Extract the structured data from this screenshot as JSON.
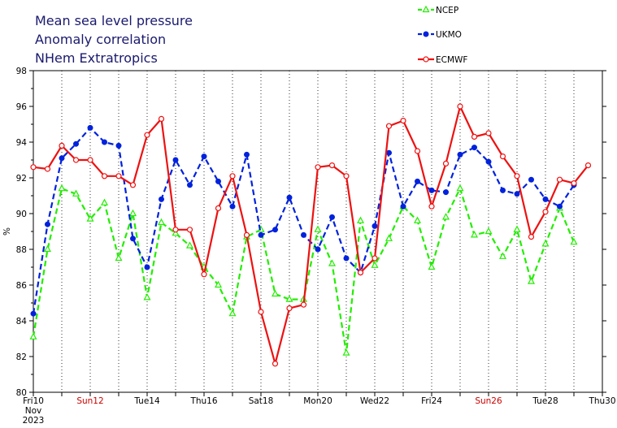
{
  "chart_data": {
    "type": "line",
    "title": [
      "Mean sea level pressure",
      "Anomaly correlation",
      "NHem Extratropics"
    ],
    "ylabel": "%",
    "ylim": [
      80,
      98
    ],
    "yticks": [
      80,
      82,
      84,
      86,
      88,
      90,
      92,
      94,
      96,
      98
    ],
    "xlim": [
      0,
      40
    ],
    "xticks": [
      {
        "x": 0,
        "label": "Fri10",
        "color": "#000000"
      },
      {
        "x": 4,
        "label": "Sun12",
        "color": "#cc0000"
      },
      {
        "x": 8,
        "label": "Tue14",
        "color": "#000000"
      },
      {
        "x": 12,
        "label": "Thu16",
        "color": "#000000"
      },
      {
        "x": 16,
        "label": "Sat18",
        "color": "#000000"
      },
      {
        "x": 20,
        "label": "Mon20",
        "color": "#000000"
      },
      {
        "x": 24,
        "label": "Wed22",
        "color": "#000000"
      },
      {
        "x": 28,
        "label": "Fri24",
        "color": "#000000"
      },
      {
        "x": 32,
        "label": "Sun26",
        "color": "#cc0000"
      },
      {
        "x": 36,
        "label": "Tue28",
        "color": "#000000"
      },
      {
        "x": 40,
        "label": "Thu30",
        "color": "#000000"
      }
    ],
    "x_sublabels": [
      "Nov",
      "2023"
    ],
    "grid": "dotted vertical at day ticks",
    "legend_position": "top-right",
    "series": [
      {
        "name": "NCEP",
        "color": "#22ee00",
        "dash": "dashed",
        "marker": "triangle",
        "x": [
          0,
          1,
          2,
          3,
          4,
          5,
          6,
          7,
          8,
          9,
          10,
          11,
          12,
          13,
          14,
          15,
          16,
          17,
          18,
          19,
          20,
          21,
          22,
          23,
          24,
          25,
          26,
          27,
          28,
          29,
          30,
          31,
          32,
          33,
          34,
          35,
          36,
          37,
          38
        ],
        "values": [
          83.1,
          88.0,
          91.4,
          91.1,
          89.7,
          90.6,
          87.5,
          90.0,
          85.3,
          89.5,
          88.9,
          88.2,
          87.0,
          86.0,
          84.4,
          88.7,
          89.1,
          85.5,
          85.2,
          85.2,
          89.1,
          87.2,
          82.2,
          89.6,
          87.1,
          88.6,
          90.4,
          89.6,
          87.0,
          89.8,
          91.4,
          88.8,
          89.0,
          87.6,
          89.1,
          86.2,
          88.3,
          90.3,
          88.4
        ]
      },
      {
        "name": "UKMO",
        "color": "#0022dd",
        "dash": "dashed",
        "marker": "dot",
        "x": [
          0,
          1,
          2,
          3,
          4,
          5,
          6,
          7,
          8,
          9,
          10,
          11,
          12,
          13,
          14,
          15,
          16,
          17,
          18,
          19,
          20,
          21,
          22,
          23,
          24,
          25,
          26,
          27,
          28,
          29,
          30,
          31,
          32,
          33,
          34,
          35,
          36,
          37,
          38
        ],
        "values": [
          84.4,
          89.4,
          93.1,
          93.9,
          94.8,
          94.0,
          93.8,
          88.6,
          87.0,
          90.8,
          93.0,
          91.6,
          93.2,
          91.8,
          90.4,
          93.3,
          88.8,
          89.1,
          90.9,
          88.8,
          88.0,
          89.8,
          87.5,
          86.7,
          89.3,
          93.4,
          90.4,
          91.8,
          91.3,
          91.2,
          93.3,
          93.7,
          92.9,
          91.3,
          91.1,
          91.9,
          90.8,
          90.4,
          91.6
        ]
      },
      {
        "name": "ECMWF",
        "color": "#ee1111",
        "dash": "solid",
        "marker": "ring",
        "x": [
          0,
          1,
          2,
          3,
          4,
          5,
          6,
          7,
          8,
          9,
          10,
          11,
          12,
          13,
          14,
          15,
          16,
          17,
          18,
          19,
          20,
          21,
          22,
          23,
          24,
          25,
          26,
          27,
          28,
          29,
          30,
          31,
          32,
          33,
          34,
          35,
          36,
          37,
          38,
          39
        ],
        "values": [
          92.6,
          92.5,
          93.8,
          93.0,
          93.0,
          92.1,
          92.1,
          91.6,
          94.4,
          95.3,
          89.1,
          89.1,
          86.6,
          90.3,
          92.1,
          88.8,
          84.5,
          81.6,
          84.7,
          84.9,
          92.6,
          92.7,
          92.1,
          86.7,
          87.5,
          94.9,
          95.2,
          93.5,
          90.4,
          92.8,
          96.0,
          94.3,
          94.5,
          93.2,
          92.1,
          88.7,
          90.1,
          91.9,
          91.7,
          92.7
        ]
      }
    ]
  }
}
